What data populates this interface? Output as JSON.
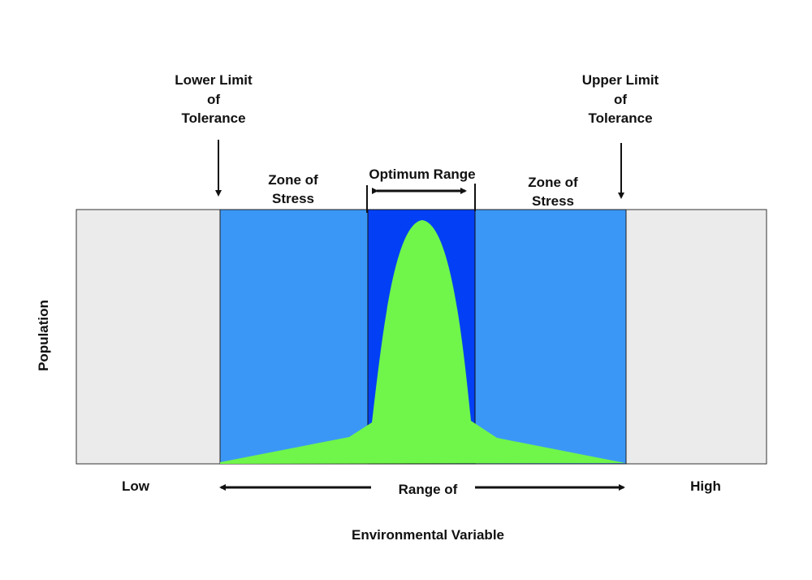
{
  "labels": {
    "lower_limit": [
      "Lower Limit",
      "of",
      "Tolerance"
    ],
    "upper_limit": [
      "Upper Limit",
      "of",
      "Tolerance"
    ],
    "zone_stress_left": [
      "Zone of",
      "Stress"
    ],
    "zone_stress_right": [
      "Zone of",
      "Stress"
    ],
    "optimum_range": "Optimum Range",
    "y_axis": "Population",
    "low": "Low",
    "high": "High",
    "range_of": "Range of",
    "environmental_variable": "Environmental Variable"
  },
  "colors": {
    "intolerance": "#ebebeb",
    "stress": "#3b97f6",
    "optimum": "#0340f5",
    "population": "#70f54a"
  }
}
